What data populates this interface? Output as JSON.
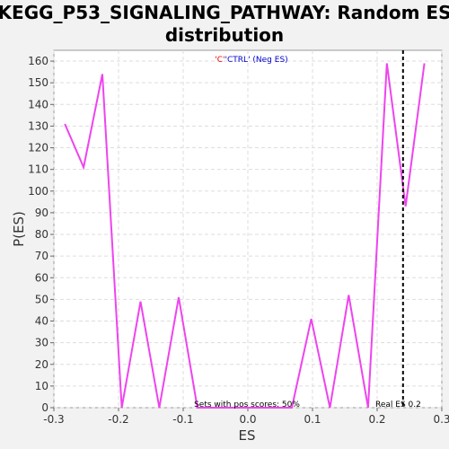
{
  "chart_data": {
    "type": "line",
    "title_line1": "KEGG_P53_SIGNALING_PATHWAY: Random ES",
    "title_line2": "distribution",
    "xlabel": "ES",
    "ylabel": "P(ES)",
    "xlim": [
      -0.3,
      0.3
    ],
    "ylim": [
      0,
      165
    ],
    "grid": true,
    "x_ticks": [
      -0.3,
      -0.2,
      -0.1,
      0.0,
      0.1,
      0.2,
      0.3
    ],
    "x_tick_labels": [
      "-0.3",
      "-0.2",
      "-0.1",
      "0.0",
      "0.1",
      "0.2",
      "0.3"
    ],
    "y_ticks": [
      0,
      10,
      20,
      30,
      40,
      50,
      60,
      70,
      80,
      90,
      100,
      110,
      120,
      130,
      140,
      150,
      160
    ],
    "y_tick_labels": [
      "0",
      "10",
      "20",
      "30",
      "40",
      "50",
      "60",
      "70",
      "80",
      "90",
      "100",
      "110",
      "120",
      "130",
      "140",
      "150",
      "160"
    ],
    "series": [
      {
        "color": "#ee44ee",
        "x": [
          -0.283,
          -0.254,
          -0.225,
          -0.195,
          -0.166,
          -0.137,
          -0.107,
          -0.078,
          -0.049,
          -0.019,
          0.01,
          0.039,
          0.068,
          0.098,
          0.127,
          0.156,
          0.186,
          0.215,
          0.244,
          0.273
        ],
        "y": [
          131,
          111,
          154,
          0,
          49,
          0,
          51,
          0,
          0,
          0,
          0,
          0,
          0,
          41,
          0,
          52,
          0,
          159,
          93,
          159
        ]
      }
    ],
    "real_es": 0.24,
    "real_es_color": "#000000",
    "legend": {
      "placement": "top-center",
      "parts": [
        {
          "text": "'C'",
          "color": "#ee0000"
        },
        {
          "text": "'CTRL' (Neg ES)",
          "color": "#0000cc"
        }
      ]
    },
    "annotations": {
      "pos_scores": "Sets with pos scores: 50%",
      "real_es_label": "Real ES 0.2"
    }
  }
}
